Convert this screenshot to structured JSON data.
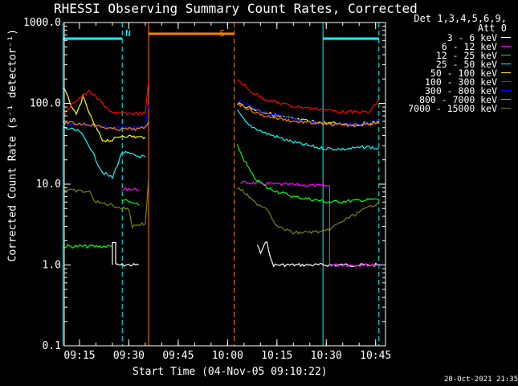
{
  "chart_data": {
    "type": "line",
    "title": "RHESSI Observing Summary Count Rates, Corrected",
    "xlabel": "Start Time (04-Nov-05 09:10:22)",
    "ylabel": "Corrected Count Rate (s⁻¹ detector⁻¹)",
    "yscale": "log",
    "ylim": [
      0.1,
      1000
    ],
    "xlim": [
      "09:10:22",
      "10:48:00"
    ],
    "x_ticks": [
      "09:15",
      "09:30",
      "09:45",
      "10:00",
      "10:15",
      "10:30",
      "10:45"
    ],
    "y_ticks": [
      "0.1",
      "1.0",
      "10.0",
      "100.0",
      "1000.0"
    ],
    "legend_header": [
      "Det 1,3,4,5,6,9,",
      "Att 0"
    ],
    "legend_position": "right, outside plot",
    "timestamp": "20-Oct-2021 21:35",
    "series": [
      {
        "name": "3 - 6 keV",
        "color": "#ffffff",
        "segments": [
          {
            "t": [
              "09:25",
              "09:25",
              "09:26",
              "09:26",
              "09:33"
            ],
            "y": [
              1,
              1.9,
              1.9,
              1,
              1
            ]
          },
          {
            "t": [
              "10:09",
              "10:10",
              "10:12",
              "10:13",
              "10:14",
              "10:30",
              "10:46"
            ],
            "y": [
              1.8,
              1.4,
              2,
              1.2,
              1,
              1,
              1
            ]
          }
        ]
      },
      {
        "name": "6 - 12 keV",
        "color": "#ff00ff",
        "segments": [
          {
            "t": [
              "09:28",
              "09:30",
              "09:33"
            ],
            "y": [
              8.5,
              8.8,
              8.5
            ]
          },
          {
            "t": [
              "10:04",
              "10:15",
              "10:30",
              "10:31",
              "10:31",
              "10:46"
            ],
            "y": [
              10.5,
              10,
              9.5,
              9.5,
              1,
              1
            ]
          }
        ]
      },
      {
        "name": "12 - 25 keV",
        "color": "#00ff00",
        "segments": [
          {
            "t": [
              "09:10",
              "09:25"
            ],
            "y": [
              1.7,
              1.7
            ]
          },
          {
            "t": [
              "09:28",
              "09:30",
              "09:33"
            ],
            "y": [
              6.5,
              6,
              5.5
            ]
          },
          {
            "t": [
              "10:03",
              "10:05",
              "10:08",
              "10:12",
              "10:20",
              "10:31",
              "10:46"
            ],
            "y": [
              30,
              20,
              12,
              9,
              7,
              6,
              6.5
            ]
          }
        ]
      },
      {
        "name": "25 - 50 keV",
        "color": "#00ffff",
        "segments": [
          {
            "t": [
              "09:10",
              "09:15",
              "09:18",
              "09:20",
              "09:22",
              "09:25",
              "09:28",
              "09:33",
              "09:35"
            ],
            "y": [
              50,
              45,
              30,
              20,
              14,
              12,
              25,
              22,
              22
            ]
          },
          {
            "t": [
              "10:03",
              "10:06",
              "10:12",
              "10:20",
              "10:28",
              "10:35",
              "10:43",
              "10:46"
            ],
            "y": [
              80,
              55,
              42,
              33,
              28,
              27,
              29,
              27
            ]
          }
        ]
      },
      {
        "name": "50 - 100 keV",
        "color": "#ffff00",
        "segments": [
          {
            "t": [
              "09:10",
              "09:11",
              "09:14",
              "09:16",
              "09:19",
              "09:22",
              "09:25",
              "09:28",
              "09:33",
              "09:35"
            ],
            "y": [
              160,
              130,
              70,
              120,
              60,
              35,
              35,
              40,
              38,
              38
            ]
          },
          {
            "t": [
              "10:03",
              "10:08",
              "10:15",
              "10:22",
              "10:30",
              "10:38",
              "10:46"
            ],
            "y": [
              100,
              85,
              70,
              62,
              57,
              55,
              58
            ]
          }
        ]
      },
      {
        "name": "100 - 300 keV",
        "color": "#ff0000",
        "segments": [
          {
            "t": [
              "09:10",
              "09:14",
              "09:18",
              "09:22",
              "09:25",
              "09:28",
              "09:33",
              "09:35",
              "09:36"
            ],
            "y": [
              70,
              110,
              140,
              100,
              75,
              75,
              75,
              75,
              190
            ]
          },
          {
            "t": [
              "10:03",
              "10:07",
              "10:12",
              "10:20",
              "10:28",
              "10:35",
              "10:43",
              "10:46"
            ],
            "y": [
              200,
              140,
              110,
              92,
              85,
              78,
              78,
              110
            ]
          }
        ]
      },
      {
        "name": "300 - 800 keV",
        "color": "#0000ff",
        "segments": [
          {
            "t": [
              "09:10",
              "09:18",
              "09:25",
              "09:33",
              "09:35",
              "09:36"
            ],
            "y": [
              55,
              53,
              50,
              50,
              52,
              95
            ]
          },
          {
            "t": [
              "10:03",
              "10:10",
              "10:20",
              "10:30",
              "10:38",
              "10:46"
            ],
            "y": [
              110,
              80,
              65,
              55,
              55,
              60
            ]
          }
        ]
      },
      {
        "name": "800 - 7000 keV",
        "color": "#ff8000",
        "segments": [
          {
            "t": [
              "09:10",
              "09:18",
              "09:25",
              "09:33",
              "09:35",
              "09:36"
            ],
            "y": [
              58,
              55,
              48,
              48,
              50,
              60
            ]
          },
          {
            "t": [
              "10:03",
              "10:10",
              "10:20",
              "10:30",
              "10:38",
              "10:46"
            ],
            "y": [
              100,
              72,
              60,
              55,
              53,
              58
            ]
          }
        ]
      },
      {
        "name": "7000 - 15000 keV",
        "color": "#808000",
        "segments": [
          {
            "t": [
              "09:10",
              "09:18",
              "09:20",
              "09:25",
              "09:28",
              "09:30",
              "09:31",
              "09:33",
              "09:35",
              "09:36"
            ],
            "y": [
              8.5,
              8,
              6,
              5.5,
              5,
              5,
              3,
              3.2,
              3.2,
              12
            ]
          },
          {
            "t": [
              "10:03",
              "10:05",
              "10:08",
              "10:12",
              "10:15",
              "10:20",
              "10:30",
              "10:35",
              "10:40",
              "10:46"
            ],
            "y": [
              9,
              8,
              6,
              5,
              3,
              2.5,
              2.6,
              3.5,
              4.5,
              6
            ]
          }
        ]
      }
    ],
    "annotations": [
      {
        "label": "N",
        "color": "#00ffff",
        "t_start": "09:10",
        "t_end": "09:28",
        "t_dashed": "09:28",
        "t_solid": "09:10"
      },
      {
        "label": "S",
        "color": "#ff8000",
        "t_start": "09:36",
        "t_end": "10:02",
        "t_dashed": "10:02",
        "t_solid": "09:36"
      },
      {
        "label": "",
        "color": "#00ffff",
        "t_start": "10:29",
        "t_end": "10:46",
        "t_dashed": "10:46",
        "t_solid": "10:29"
      }
    ]
  }
}
